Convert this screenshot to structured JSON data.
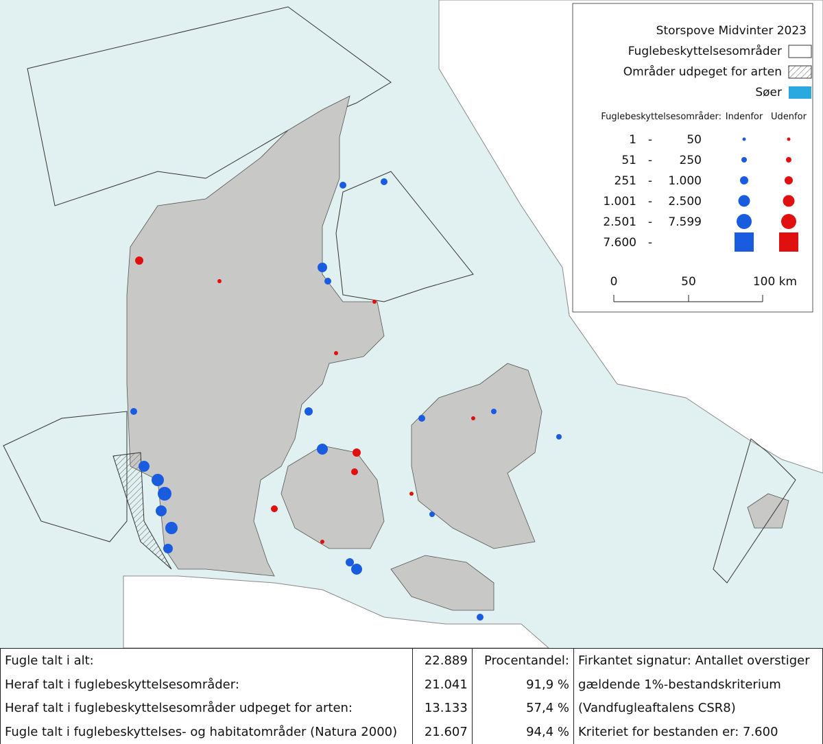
{
  "legend": {
    "title": "Storspove Midvinter 2023",
    "items": [
      "Fuglebeskyttelsesområder",
      "Områder udpeget for arten",
      "Søer"
    ],
    "size_header": "Fuglebeskyttelsesområder:",
    "inside": "Indenfor",
    "outside": "Udenfor",
    "separator": "-",
    "classes": [
      {
        "from": "1",
        "to": "50"
      },
      {
        "from": "51",
        "to": "250"
      },
      {
        "from": "251",
        "to": "1.000"
      },
      {
        "from": "1.001",
        "to": "2.500"
      },
      {
        "from": "2.501",
        "to": "7.599"
      },
      {
        "from": "7.600"
      }
    ],
    "scale": [
      "0",
      "50",
      "100 km"
    ]
  },
  "table": {
    "rows": [
      [
        "Fugle talt i alt:",
        "22.889",
        "Procentandel:",
        "Firkantet signatur: Antallet overstiger"
      ],
      [
        "Heraf talt i fuglebeskyttelsesområder:",
        "21.041",
        "91,9 %",
        "gældende 1%-bestandskriterium"
      ],
      [
        "Heraf talt i fuglebeskyttelsesområder udpeget for arten:",
        "13.133",
        "57,4 %",
        "(Vandfugleaftalens CSR8)"
      ],
      [
        "Fugle talt i fuglebeskyttelses- og habitatområder (Natura 2000)",
        "21.607",
        "94,4 %",
        "Kriteriet for bestanden er: 7.600"
      ]
    ]
  }
}
